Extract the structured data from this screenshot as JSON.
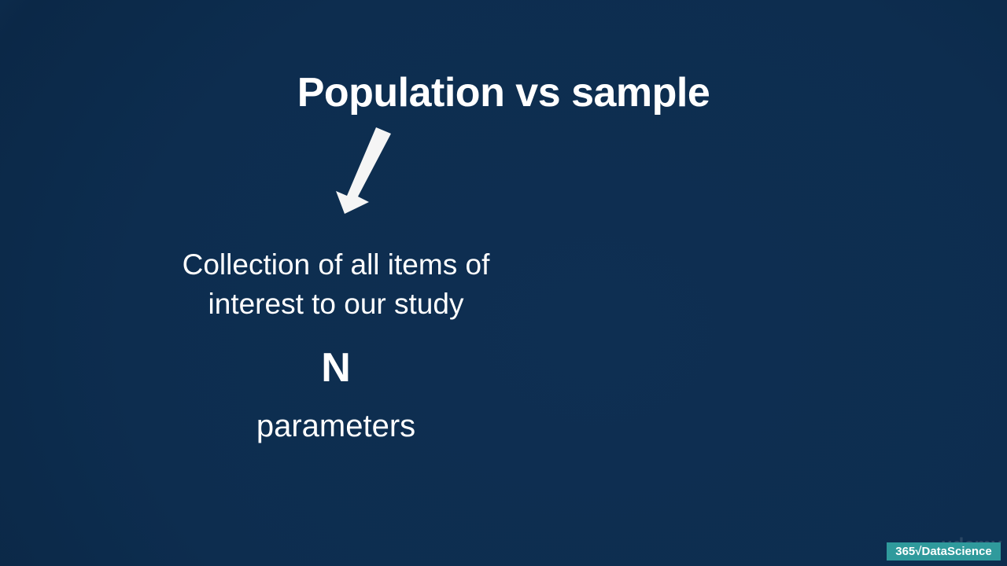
{
  "slide": {
    "title": "Population vs sample",
    "description": [
      "Collection of all items of",
      "interest to our study"
    ],
    "symbol": "N",
    "term": "parameters",
    "watermark": "udemy",
    "logo": "365√DataScience"
  }
}
